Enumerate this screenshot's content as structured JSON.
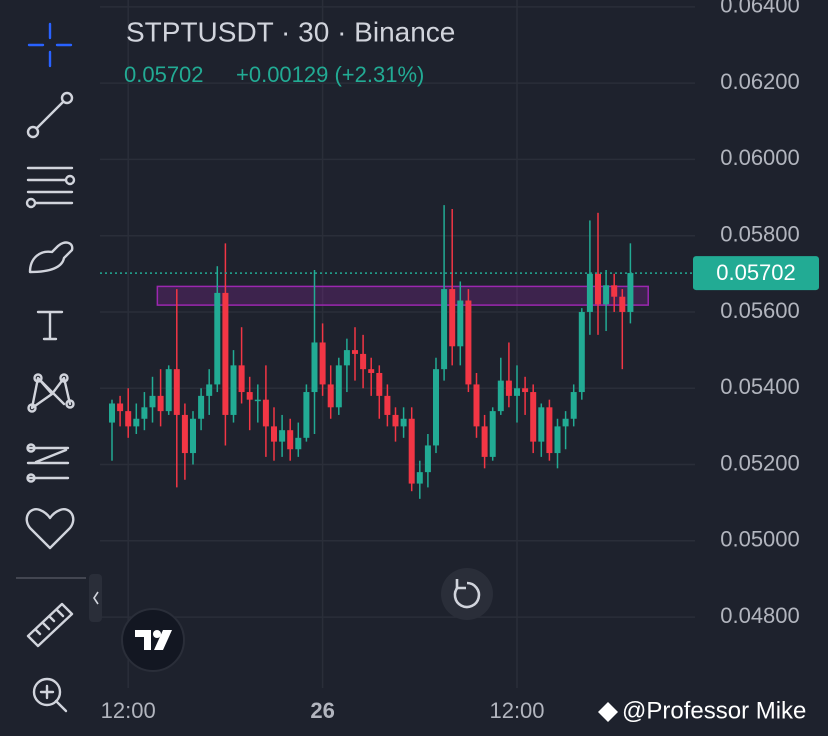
{
  "header": {
    "symbol": "STPTUSDT · 30 · Binance",
    "last": "0.05702",
    "change": "+0.00129 (+2.31%)"
  },
  "chart_data": {
    "type": "candlestick",
    "categories": [
      null,
      null,
      "12:00",
      null,
      null,
      null,
      null,
      null,
      null,
      null,
      null,
      null,
      null,
      null,
      null,
      null,
      null,
      null,
      null,
      null,
      null,
      null,
      null,
      null,
      null,
      null,
      "26",
      null,
      null,
      null,
      null,
      null,
      null,
      null,
      null,
      null,
      null,
      null,
      null,
      null,
      null,
      null,
      null,
      null,
      null,
      null,
      null,
      null,
      null,
      null,
      "12:00",
      null,
      null,
      null,
      null,
      null,
      null,
      null,
      null,
      null,
      null,
      null,
      null,
      null,
      null
    ],
    "open": [
      0.0531,
      0.0536,
      0.0534,
      0.053,
      0.0532,
      0.0535,
      0.0538,
      0.0534,
      0.0545,
      0.0533,
      0.0523,
      0.0532,
      0.0538,
      0.0541,
      0.0565,
      0.0533,
      0.0546,
      0.0539,
      0.0537,
      0.0537,
      0.053,
      0.0526,
      0.0529,
      0.0524,
      0.0527,
      0.0539,
      0.0552,
      0.0541,
      0.0535,
      0.0546,
      0.055,
      0.0549,
      0.0545,
      0.0544,
      0.0538,
      0.0533,
      0.053,
      0.0532,
      0.0515,
      0.0518,
      0.0525,
      0.0545,
      0.0566,
      0.0551,
      0.0563,
      0.0541,
      0.053,
      0.0522,
      0.0534,
      0.0542,
      0.0538,
      0.054,
      0.0539,
      0.0526,
      0.0535,
      0.0523,
      0.053,
      0.0532,
      0.0539,
      0.056,
      0.057,
      0.0562,
      0.0567,
      0.0564,
      0.056
    ],
    "high": [
      0.0537,
      0.0538,
      0.054,
      0.0536,
      0.0539,
      0.0543,
      0.0545,
      0.0546,
      0.0566,
      0.0536,
      0.0534,
      0.054,
      0.0545,
      0.0572,
      0.0578,
      0.055,
      0.0556,
      0.0543,
      0.0541,
      0.0546,
      0.0535,
      0.0533,
      0.0532,
      0.0531,
      0.0541,
      0.0571,
      0.0557,
      0.0546,
      0.0548,
      0.0553,
      0.0556,
      0.0554,
      0.0548,
      0.0546,
      0.0541,
      0.0535,
      0.0535,
      0.0535,
      0.0521,
      0.0528,
      0.0548,
      0.0588,
      0.0587,
      0.0568,
      0.0566,
      0.0544,
      0.0533,
      0.0535,
      0.0548,
      0.0552,
      0.0546,
      0.0543,
      0.0541,
      0.0536,
      0.0537,
      0.0532,
      0.0534,
      0.0541,
      0.0561,
      0.0584,
      0.0586,
      0.0571,
      0.057,
      0.0566,
      0.0578
    ],
    "low": [
      0.0521,
      0.053,
      0.0527,
      0.0528,
      0.0529,
      0.0531,
      0.053,
      0.0533,
      0.0514,
      0.0516,
      0.052,
      0.0529,
      0.0533,
      0.0539,
      0.0525,
      0.0531,
      0.0536,
      0.0529,
      0.0531,
      0.0522,
      0.0521,
      0.0522,
      0.0521,
      0.0522,
      0.0526,
      0.0528,
      0.0538,
      0.0532,
      0.0533,
      0.0539,
      0.0542,
      0.054,
      0.0538,
      0.0532,
      0.053,
      0.0526,
      0.0527,
      0.0513,
      0.0511,
      0.0514,
      0.0523,
      0.0542,
      0.0546,
      0.0546,
      0.0539,
      0.0527,
      0.0519,
      0.0521,
      0.0533,
      0.0535,
      0.0531,
      0.0533,
      0.0523,
      0.0522,
      0.0521,
      0.0519,
      0.0524,
      0.053,
      0.0537,
      0.0554,
      0.0554,
      0.0555,
      0.056,
      0.0545,
      0.0557
    ],
    "close": [
      0.0536,
      0.0534,
      0.053,
      0.0532,
      0.0535,
      0.0538,
      0.0534,
      0.0545,
      0.0533,
      0.0523,
      0.0532,
      0.0538,
      0.0541,
      0.0565,
      0.0533,
      0.0546,
      0.0539,
      0.0537,
      0.0537,
      0.053,
      0.0526,
      0.0529,
      0.0524,
      0.0527,
      0.0539,
      0.0552,
      0.0541,
      0.0535,
      0.0546,
      0.055,
      0.0549,
      0.0545,
      0.0544,
      0.0538,
      0.0533,
      0.053,
      0.0532,
      0.0515,
      0.0518,
      0.0525,
      0.0545,
      0.0566,
      0.0551,
      0.0563,
      0.0541,
      0.053,
      0.0522,
      0.0534,
      0.0542,
      0.0538,
      0.054,
      0.0539,
      0.0526,
      0.0535,
      0.0523,
      0.053,
      0.0532,
      0.0539,
      0.056,
      0.057,
      0.0562,
      0.0567,
      0.0564,
      0.056,
      0.05702
    ],
    "up_color": "#22ab94",
    "down_color": "#f23645",
    "ylim": [
      0.04614,
      0.06418
    ],
    "yticks": [
      {
        "value": 0.064,
        "label": "0.06400"
      },
      {
        "value": 0.062,
        "label": "0.06200"
      },
      {
        "value": 0.06,
        "label": "0.06000"
      },
      {
        "value": 0.058,
        "label": "0.05800"
      },
      {
        "value": 0.056,
        "label": "0.05600"
      },
      {
        "value": 0.054,
        "label": "0.05400"
      },
      {
        "value": 0.052,
        "label": "0.05200"
      },
      {
        "value": 0.05,
        "label": "0.05000"
      },
      {
        "value": 0.048,
        "label": "0.04800"
      }
    ],
    "grid": true,
    "last_price": {
      "value": 0.05702,
      "label": "0.05702"
    },
    "zone": {
      "top": 0.05667,
      "bottom": 0.05618,
      "color": "#9c27b0"
    }
  },
  "watermark": "@Professor Mike"
}
